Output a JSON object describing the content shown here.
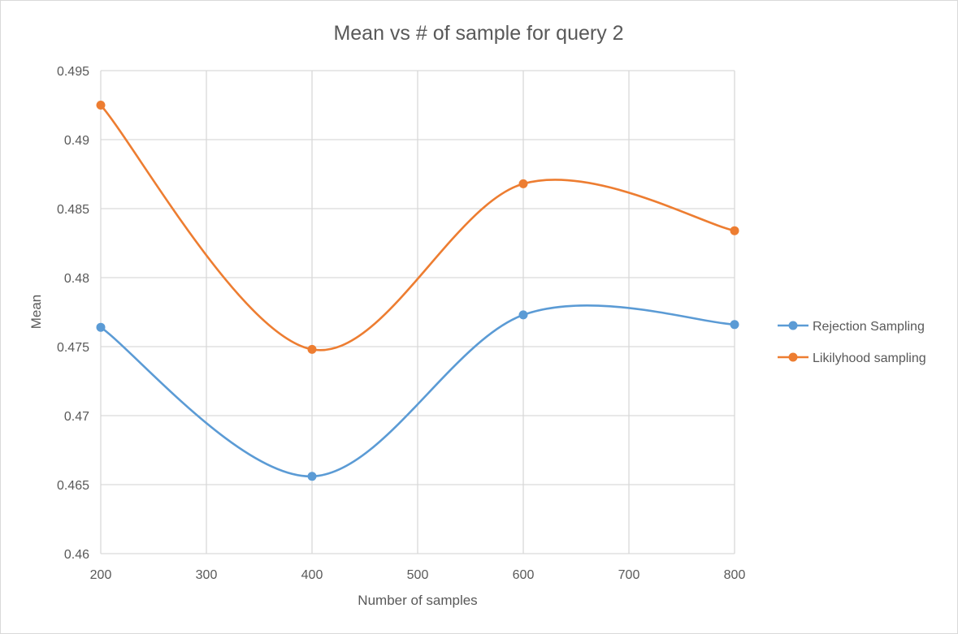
{
  "chart_data": {
    "type": "line",
    "title": "Mean vs # of sample for query 2",
    "xlabel": "Number of samples",
    "ylabel": "Mean",
    "x": [
      200,
      400,
      600,
      800
    ],
    "xlim": [
      200,
      800
    ],
    "ylim": [
      0.46,
      0.495
    ],
    "x_ticks": [
      "200",
      "300",
      "400",
      "500",
      "600",
      "700",
      "800"
    ],
    "y_ticks": [
      "0.46",
      "0.465",
      "0.47",
      "0.475",
      "0.48",
      "0.485",
      "0.49",
      "0.495"
    ],
    "grid": true,
    "smooth": true,
    "legend_position": "right",
    "series": [
      {
        "name": "Rejection Sampling",
        "color": "#5b9bd5",
        "values": [
          0.4764,
          0.4656,
          0.4773,
          0.4766
        ]
      },
      {
        "name": "Likilyhood sampling",
        "color": "#ed7d31",
        "values": [
          0.4925,
          0.4748,
          0.4868,
          0.4834
        ]
      }
    ]
  }
}
